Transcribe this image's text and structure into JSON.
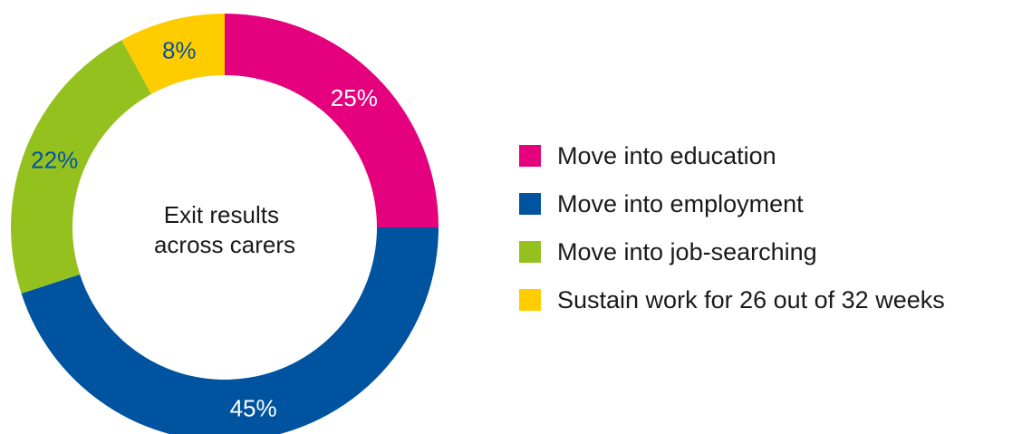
{
  "chart_data": {
    "type": "pie",
    "variant": "donut",
    "center_label": [
      "Exit results",
      "across carers"
    ],
    "categories": [
      "Move into education",
      "Move into employment",
      "Move into job-searching",
      "Sustain work for 26 out of 32 weeks"
    ],
    "values": [
      25,
      45,
      22,
      8
    ],
    "value_labels": [
      "25%",
      "45%",
      "22%",
      "8%"
    ],
    "colors": [
      "#e5007e",
      "#00539f",
      "#95c11f",
      "#ffcc00"
    ],
    "label_colors": [
      "#ffffff",
      "#ffffff",
      "#00539f",
      "#00539f"
    ],
    "legend_position": "right",
    "start": "top, clockwise"
  }
}
